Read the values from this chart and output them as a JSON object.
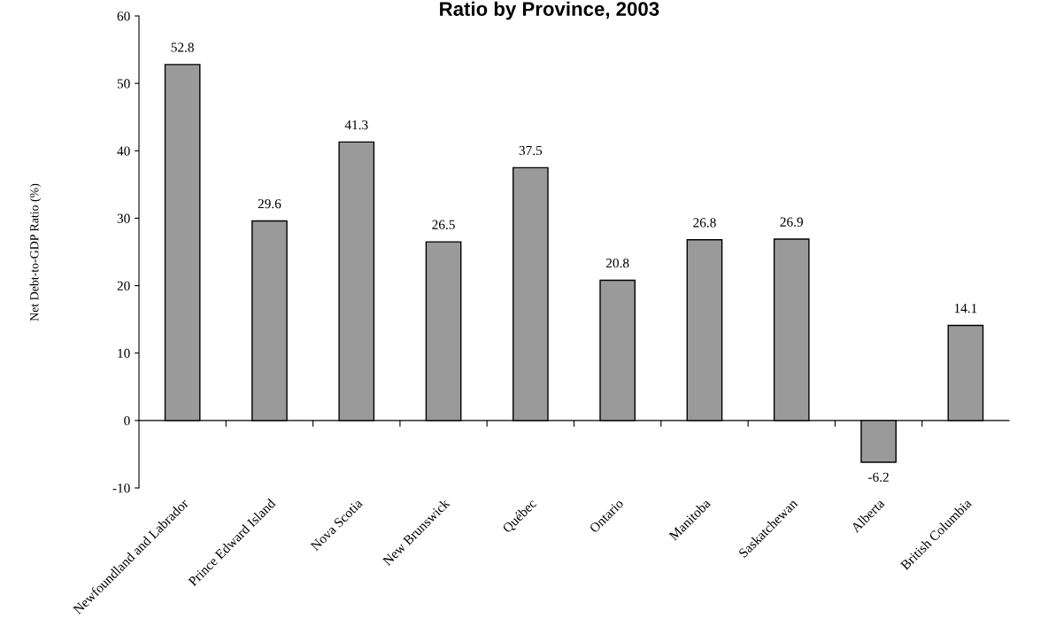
{
  "chart_data": {
    "type": "bar",
    "title": "Ratio by Province, 2003",
    "ylabel": "Net Debt-to-GDP Ratio (%)",
    "categories": [
      "Newfoundland and Labrador",
      "Prince Edward Island",
      "Nova Scotia",
      "New Brunswick",
      "Québec",
      "Ontario",
      "Manitoba",
      "Saskatchewan",
      "Alberta",
      "British Columbia"
    ],
    "values": [
      52.8,
      29.6,
      41.3,
      26.5,
      37.5,
      20.8,
      26.8,
      26.9,
      -6.2,
      14.1
    ],
    "color": "#9a9a9a",
    "ylim": [
      -10,
      60
    ],
    "yticks": [
      -10,
      0,
      10,
      20,
      30,
      40,
      50,
      60
    ],
    "data_labels": true,
    "legend": false
  }
}
